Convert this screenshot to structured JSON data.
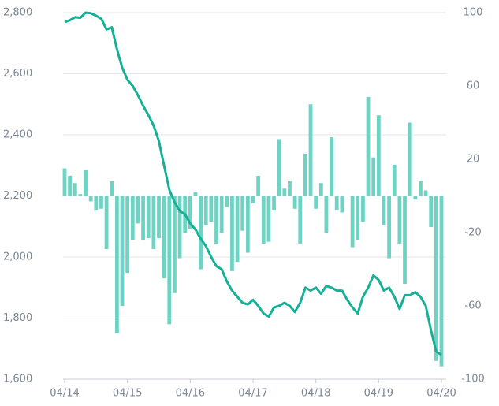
{
  "chart_data": {
    "type": "bar-line",
    "x": [
      "04/14",
      "05/14",
      "06/14",
      "07/14",
      "08/14",
      "09/14",
      "10/14",
      "11/14",
      "12/14",
      "01/15",
      "02/15",
      "03/15",
      "04/15",
      "05/15",
      "06/15",
      "07/15",
      "08/15",
      "09/15",
      "10/15",
      "11/15",
      "12/15",
      "01/16",
      "02/16",
      "03/16",
      "04/16",
      "05/16",
      "06/16",
      "07/16",
      "08/16",
      "09/16",
      "10/16",
      "11/16",
      "12/16",
      "01/17",
      "02/17",
      "03/17",
      "04/17",
      "05/17",
      "06/17",
      "07/17",
      "08/17",
      "09/17",
      "10/17",
      "11/17",
      "12/17",
      "01/18",
      "02/18",
      "03/18",
      "04/18",
      "05/18",
      "06/18",
      "07/18",
      "08/18",
      "09/18",
      "10/18",
      "11/18",
      "12/18",
      "01/19",
      "02/19",
      "03/19",
      "04/19",
      "05/19",
      "06/19",
      "07/19",
      "08/19",
      "09/19",
      "10/19",
      "11/19",
      "12/19",
      "01/20",
      "02/20",
      "03/20",
      "04/20"
    ],
    "xticks": [
      "04/14",
      "04/15",
      "04/16",
      "04/17",
      "04/18",
      "04/19",
      "04/20"
    ],
    "series": [
      {
        "type": "bar",
        "axis": "y2",
        "color": "#6fd3c3",
        "values": [
          15,
          11,
          7,
          1,
          14,
          -3,
          -8,
          -7,
          -29,
          8,
          -75,
          -60,
          -42,
          -24,
          -15,
          -24,
          -23,
          -29,
          -23,
          -45,
          -70,
          -53,
          -34,
          -20,
          -18,
          2,
          -40,
          -16,
          -14,
          -26,
          -20,
          -6,
          -41,
          -36,
          -19,
          -31,
          -4,
          11,
          -26,
          -25,
          -8,
          31,
          4,
          8,
          -7,
          -26,
          23,
          50,
          -7,
          7,
          -20,
          32,
          -8,
          -9,
          0,
          -28,
          -24,
          -14,
          54,
          21,
          44,
          -16,
          -34,
          17,
          -26,
          -48,
          40,
          -2,
          8,
          3,
          -17,
          -90,
          -93
        ]
      },
      {
        "type": "line",
        "axis": "y",
        "color": "#15b096",
        "values": [
          2769,
          2775,
          2785,
          2783,
          2800,
          2798,
          2790,
          2780,
          2745,
          2752,
          2680,
          2620,
          2580,
          2560,
          2530,
          2495,
          2465,
          2430,
          2380,
          2300,
          2220,
          2180,
          2150,
          2140,
          2110,
          2090,
          2060,
          2035,
          2000,
          1970,
          1960,
          1920,
          1890,
          1870,
          1850,
          1845,
          1860,
          1840,
          1815,
          1805,
          1835,
          1840,
          1850,
          1840,
          1820,
          1850,
          1900,
          1890,
          1900,
          1880,
          1905,
          1900,
          1890,
          1890,
          1860,
          1835,
          1815,
          1870,
          1900,
          1940,
          1925,
          1890,
          1900,
          1870,
          1830,
          1875,
          1875,
          1885,
          1870,
          1840,
          1760,
          1690,
          1680
        ]
      }
    ],
    "ylim": [
      1600,
      2800
    ],
    "yticks": [
      {
        "value": 1600,
        "label": "1,600"
      },
      {
        "value": 1800,
        "label": "1,800"
      },
      {
        "value": 2000,
        "label": "2,000"
      },
      {
        "value": 2200,
        "label": "2,200"
      },
      {
        "value": 2400,
        "label": "2,400"
      },
      {
        "value": 2600,
        "label": "2,600"
      },
      {
        "value": 2800,
        "label": "2,800"
      }
    ],
    "y2lim": [
      -100,
      100
    ],
    "y2ticks": [
      -100,
      -60,
      -20,
      20,
      60,
      100
    ],
    "grid": true
  }
}
